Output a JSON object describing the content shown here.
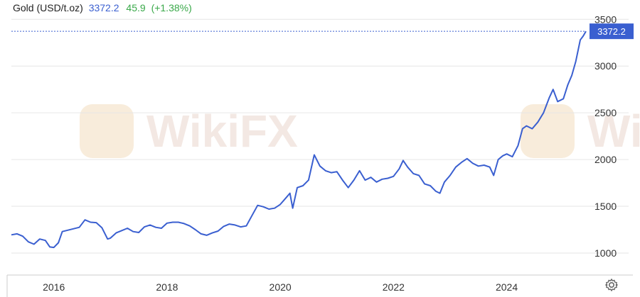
{
  "header": {
    "title": "Gold (USD/t.oz)",
    "last_price": "3372.2",
    "change": "45.9",
    "change_pct": "(+1.38%)"
  },
  "colors": {
    "line": "#3a5fd0",
    "header_price": "#3a5fd0",
    "change_positive": "#3aa94a",
    "grid": "#e6e6e6",
    "watermark": "#f2d9b8"
  },
  "watermark": {
    "text": "WikiFX",
    "icon": "wikifx-logo-icon"
  },
  "icons": {
    "settings": "gear-icon"
  },
  "chart_data": {
    "type": "line",
    "title": "Gold (USD/t.oz)",
    "xlabel": "",
    "ylabel": "",
    "xlim": [
      2015.25,
      2025.4
    ],
    "ylim": [
      780,
      3540
    ],
    "x_ticks": [
      2016,
      2018,
      2020,
      2022,
      2024
    ],
    "x_tick_labels": [
      "2016",
      "2018",
      "2020",
      "2022",
      "2024"
    ],
    "y_ticks": [
      1000,
      1500,
      2000,
      2500,
      3000,
      3500
    ],
    "y_tick_labels": [
      "1000",
      "1500",
      "2000",
      "2500",
      "3000",
      "3500"
    ],
    "grid": true,
    "last_value": 3372.2,
    "last_value_label": "3372.2",
    "series": [
      {
        "values": [
          {
            "x": 2015.25,
            "y": 1195
          },
          {
            "x": 2015.35,
            "y": 1205
          },
          {
            "x": 2015.45,
            "y": 1180
          },
          {
            "x": 2015.55,
            "y": 1120
          },
          {
            "x": 2015.65,
            "y": 1095
          },
          {
            "x": 2015.75,
            "y": 1150
          },
          {
            "x": 2015.85,
            "y": 1135
          },
          {
            "x": 2015.93,
            "y": 1065
          },
          {
            "x": 2016.0,
            "y": 1060
          },
          {
            "x": 2016.08,
            "y": 1110
          },
          {
            "x": 2016.15,
            "y": 1230
          },
          {
            "x": 2016.25,
            "y": 1245
          },
          {
            "x": 2016.35,
            "y": 1260
          },
          {
            "x": 2016.45,
            "y": 1275
          },
          {
            "x": 2016.55,
            "y": 1355
          },
          {
            "x": 2016.65,
            "y": 1330
          },
          {
            "x": 2016.75,
            "y": 1325
          },
          {
            "x": 2016.85,
            "y": 1270
          },
          {
            "x": 2016.95,
            "y": 1150
          },
          {
            "x": 2017.0,
            "y": 1160
          },
          {
            "x": 2017.1,
            "y": 1215
          },
          {
            "x": 2017.2,
            "y": 1240
          },
          {
            "x": 2017.3,
            "y": 1265
          },
          {
            "x": 2017.4,
            "y": 1230
          },
          {
            "x": 2017.5,
            "y": 1220
          },
          {
            "x": 2017.6,
            "y": 1280
          },
          {
            "x": 2017.7,
            "y": 1300
          },
          {
            "x": 2017.8,
            "y": 1275
          },
          {
            "x": 2017.9,
            "y": 1265
          },
          {
            "x": 2018.0,
            "y": 1320
          },
          {
            "x": 2018.1,
            "y": 1330
          },
          {
            "x": 2018.2,
            "y": 1330
          },
          {
            "x": 2018.3,
            "y": 1315
          },
          {
            "x": 2018.4,
            "y": 1290
          },
          {
            "x": 2018.5,
            "y": 1250
          },
          {
            "x": 2018.6,
            "y": 1205
          },
          {
            "x": 2018.7,
            "y": 1190
          },
          {
            "x": 2018.8,
            "y": 1215
          },
          {
            "x": 2018.9,
            "y": 1235
          },
          {
            "x": 2019.0,
            "y": 1285
          },
          {
            "x": 2019.1,
            "y": 1310
          },
          {
            "x": 2019.2,
            "y": 1300
          },
          {
            "x": 2019.3,
            "y": 1280
          },
          {
            "x": 2019.4,
            "y": 1290
          },
          {
            "x": 2019.5,
            "y": 1400
          },
          {
            "x": 2019.6,
            "y": 1510
          },
          {
            "x": 2019.7,
            "y": 1495
          },
          {
            "x": 2019.8,
            "y": 1470
          },
          {
            "x": 2019.9,
            "y": 1480
          },
          {
            "x": 2020.0,
            "y": 1520
          },
          {
            "x": 2020.1,
            "y": 1590
          },
          {
            "x": 2020.17,
            "y": 1640
          },
          {
            "x": 2020.22,
            "y": 1480
          },
          {
            "x": 2020.3,
            "y": 1700
          },
          {
            "x": 2020.4,
            "y": 1720
          },
          {
            "x": 2020.5,
            "y": 1780
          },
          {
            "x": 2020.6,
            "y": 2050
          },
          {
            "x": 2020.7,
            "y": 1930
          },
          {
            "x": 2020.8,
            "y": 1880
          },
          {
            "x": 2020.9,
            "y": 1860
          },
          {
            "x": 2021.0,
            "y": 1870
          },
          {
            "x": 2021.1,
            "y": 1780
          },
          {
            "x": 2021.2,
            "y": 1700
          },
          {
            "x": 2021.3,
            "y": 1780
          },
          {
            "x": 2021.4,
            "y": 1880
          },
          {
            "x": 2021.5,
            "y": 1780
          },
          {
            "x": 2021.6,
            "y": 1810
          },
          {
            "x": 2021.7,
            "y": 1760
          },
          {
            "x": 2021.8,
            "y": 1790
          },
          {
            "x": 2021.9,
            "y": 1800
          },
          {
            "x": 2022.0,
            "y": 1820
          },
          {
            "x": 2022.1,
            "y": 1900
          },
          {
            "x": 2022.17,
            "y": 1990
          },
          {
            "x": 2022.25,
            "y": 1920
          },
          {
            "x": 2022.35,
            "y": 1850
          },
          {
            "x": 2022.45,
            "y": 1830
          },
          {
            "x": 2022.55,
            "y": 1740
          },
          {
            "x": 2022.65,
            "y": 1720
          },
          {
            "x": 2022.75,
            "y": 1660
          },
          {
            "x": 2022.82,
            "y": 1640
          },
          {
            "x": 2022.9,
            "y": 1760
          },
          {
            "x": 2023.0,
            "y": 1830
          },
          {
            "x": 2023.1,
            "y": 1920
          },
          {
            "x": 2023.2,
            "y": 1970
          },
          {
            "x": 2023.3,
            "y": 2010
          },
          {
            "x": 2023.4,
            "y": 1960
          },
          {
            "x": 2023.5,
            "y": 1930
          },
          {
            "x": 2023.6,
            "y": 1940
          },
          {
            "x": 2023.7,
            "y": 1920
          },
          {
            "x": 2023.77,
            "y": 1830
          },
          {
            "x": 2023.85,
            "y": 2000
          },
          {
            "x": 2023.93,
            "y": 2040
          },
          {
            "x": 2024.0,
            "y": 2060
          },
          {
            "x": 2024.1,
            "y": 2030
          },
          {
            "x": 2024.2,
            "y": 2150
          },
          {
            "x": 2024.28,
            "y": 2330
          },
          {
            "x": 2024.35,
            "y": 2360
          },
          {
            "x": 2024.45,
            "y": 2330
          },
          {
            "x": 2024.55,
            "y": 2400
          },
          {
            "x": 2024.65,
            "y": 2500
          },
          {
            "x": 2024.75,
            "y": 2660
          },
          {
            "x": 2024.82,
            "y": 2750
          },
          {
            "x": 2024.9,
            "y": 2620
          },
          {
            "x": 2025.0,
            "y": 2650
          },
          {
            "x": 2025.08,
            "y": 2800
          },
          {
            "x": 2025.15,
            "y": 2900
          },
          {
            "x": 2025.22,
            "y": 3050
          },
          {
            "x": 2025.3,
            "y": 3280
          },
          {
            "x": 2025.35,
            "y": 3320
          },
          {
            "x": 2025.4,
            "y": 3372.2
          }
        ]
      }
    ]
  }
}
